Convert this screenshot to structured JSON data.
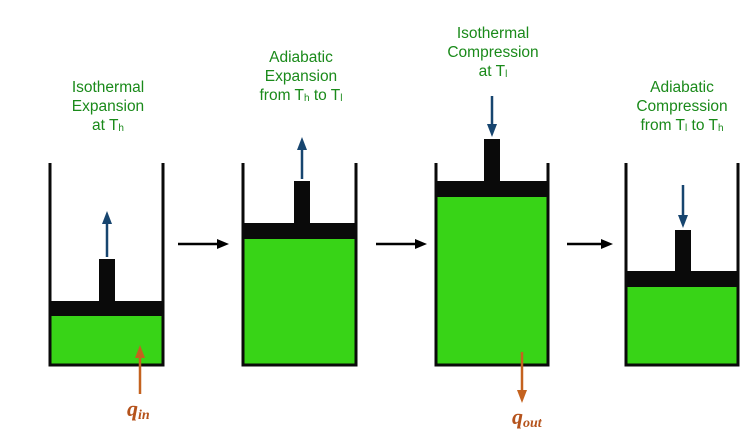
{
  "colors": {
    "gas": "#38d417",
    "piston": "#0a0a0a",
    "label": "#1a8a1a",
    "piston_arrow": "#17456f",
    "heat_arrow": "#c4621f",
    "step_arrow": "#000000"
  },
  "stages": [
    {
      "line1": "Isothermal",
      "line2": "Expansion",
      "line3": "at T",
      "line3_sub": "h",
      "piston_motion": "up"
    },
    {
      "line1": "Adiabatic",
      "line2": "Expansion",
      "line3": "from T",
      "line3_sub": "h",
      "line3_mid": " to T",
      "line3_sub2": "l",
      "piston_motion": "up"
    },
    {
      "line1": "Isothermal",
      "line2": "Compression",
      "line3": "at T",
      "line3_sub": "l",
      "piston_motion": "down"
    },
    {
      "line1": "Adiabatic",
      "line2": "Compression",
      "line3": "from T",
      "line3_sub": "l",
      "line3_mid": " to T",
      "line3_sub2": "h",
      "piston_motion": "down"
    }
  ],
  "heat_in": {
    "symbol": "q",
    "sub": "in",
    "direction": "into cylinder"
  },
  "heat_out": {
    "symbol": "q",
    "sub": "out",
    "direction": "out of cylinder"
  },
  "step_arrows": 3
}
